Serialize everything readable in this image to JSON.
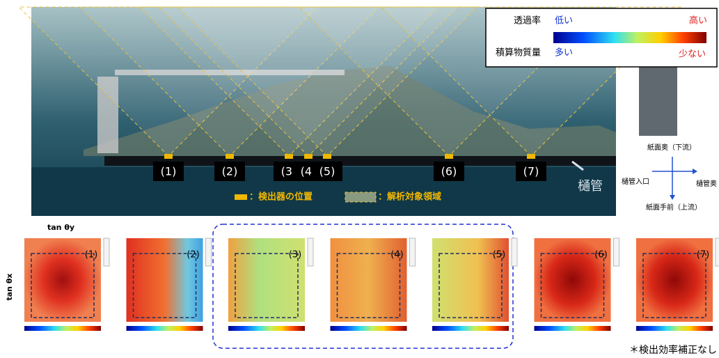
{
  "legend": {
    "transmittance": "透過率",
    "low": "低い",
    "high": "高い",
    "mass": "積算物質量",
    "many": "多い",
    "few": "少ない"
  },
  "detectors": [
    "(1)",
    "(2)",
    "(3)",
    "(4)",
    "(5)",
    "(6)",
    "(7)"
  ],
  "pipe": "樋管",
  "key": {
    "detector": "：検出器の位置",
    "region": "：解析対象領域"
  },
  "directions": {
    "back": "紙面奥（下流）",
    "inlet": "樋管入口",
    "inner": "樋管奥",
    "front": "紙面手前（上流）"
  },
  "axes": {
    "y": "tan θy",
    "x": "tan θx"
  },
  "panels": [
    "(1)",
    "(2)",
    "(3)",
    "(4)",
    "(5)",
    "(6)",
    "(7)"
  ],
  "footnote": "＊検出効率補正なし"
}
